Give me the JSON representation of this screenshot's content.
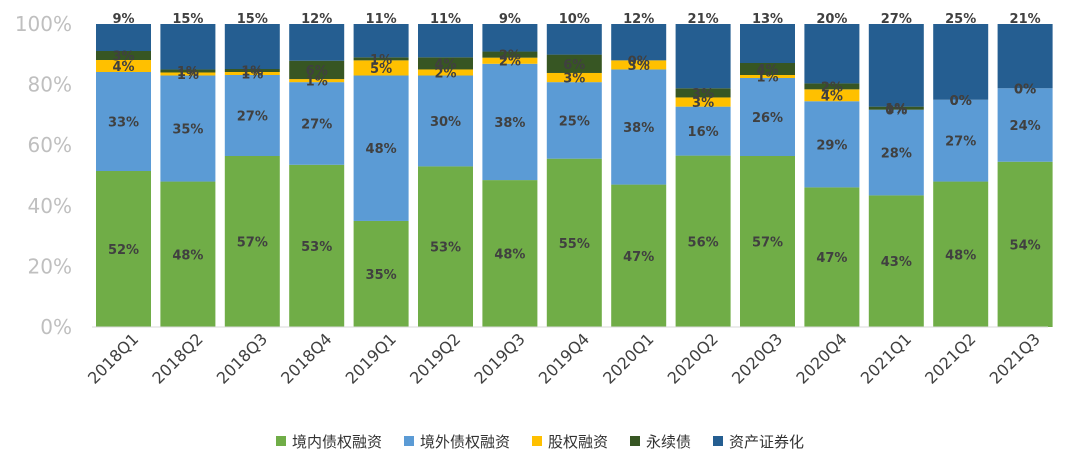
{
  "chart_data": {
    "type": "bar",
    "stacked": true,
    "categories": [
      "2018Q1",
      "2018Q2",
      "2018Q3",
      "2018Q4",
      "2019Q1",
      "2019Q2",
      "2019Q3",
      "2019Q4",
      "2020Q1",
      "2020Q2",
      "2020Q3",
      "2020Q4",
      "2021Q1",
      "2021Q2",
      "2021Q3"
    ],
    "y_tick_labels": [
      "0%",
      "20%",
      "40%",
      "60%",
      "80%",
      "100%"
    ],
    "ylim": [
      0,
      100
    ],
    "grid": false,
    "legend_position": "bottom",
    "series": [
      {
        "name": "境内债权融资",
        "color": "#70ad47",
        "values": [
          52,
          48,
          57,
          53,
          35,
          53,
          48,
          55,
          47,
          56,
          57,
          47,
          43,
          48,
          54
        ],
        "labels": [
          "52%",
          "48%",
          "57%",
          "53%",
          "35%",
          "53%",
          "48%",
          "55%",
          "47%",
          "56%",
          "57%",
          "47%",
          "43%",
          "48%",
          "54%"
        ]
      },
      {
        "name": "境外债权融资",
        "color": "#5b9bd5",
        "values": [
          33,
          35,
          27,
          27,
          48,
          30,
          38,
          25,
          38,
          16,
          26,
          29,
          28,
          27,
          24
        ],
        "labels": [
          "33%",
          "35%",
          "27%",
          "27%",
          "48%",
          "30%",
          "38%",
          "25%",
          "38%",
          "16%",
          "26%",
          "29%",
          "28%",
          "27%",
          "24%"
        ]
      },
      {
        "name": "股权融资",
        "color": "#ffc000",
        "values": [
          4,
          1,
          1,
          1,
          5,
          2,
          2,
          3,
          3,
          3,
          1,
          4,
          0,
          0,
          0
        ],
        "labels": [
          "4%",
          "1%",
          "1%",
          "1%",
          "5%",
          "2%",
          "2%",
          "3%",
          "3%",
          "3%",
          "1%",
          "4%",
          "0%",
          "0%",
          "0%"
        ]
      },
      {
        "name": "永续债",
        "color": "#375623",
        "values": [
          3,
          1,
          1,
          6,
          1,
          4,
          2,
          6,
          0,
          3,
          4,
          2,
          1,
          0,
          0
        ],
        "labels": [
          "3%",
          "1%",
          "1%",
          "6%",
          "1%",
          "4%",
          "2%",
          "6%",
          "0%",
          "3%",
          "4%",
          "2%",
          "1%",
          "0%",
          "0%"
        ]
      },
      {
        "name": "资产证券化",
        "color": "#255e91",
        "values": [
          9,
          15,
          15,
          12,
          11,
          11,
          9,
          10,
          12,
          21,
          13,
          20,
          27,
          25,
          21
        ],
        "labels": [
          "9%",
          "15%",
          "15%",
          "12%",
          "11%",
          "11%",
          "9%",
          "10%",
          "12%",
          "21%",
          "13%",
          "20%",
          "27%",
          "25%",
          "21%"
        ]
      }
    ]
  }
}
